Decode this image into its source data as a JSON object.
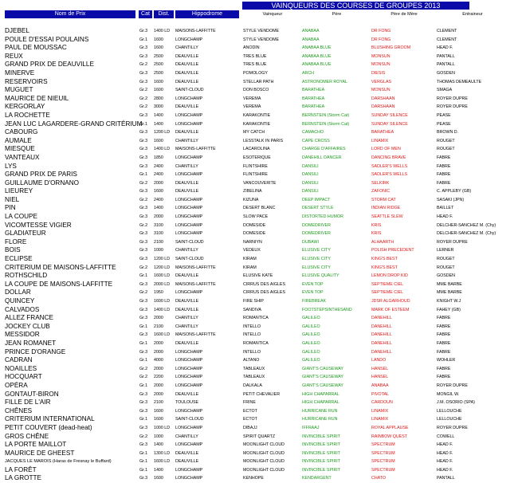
{
  "title": "VAINQUEURS DES COURSES DE GROUPES 2013",
  "headers": {
    "nom": "Nom de Prix",
    "cat": "Cat",
    "dist": "Dist.",
    "hippodrome": "Hippodrome",
    "vainqueur": "Vainqueur",
    "pere": "Père",
    "pere_de_mere": "Père de Mère",
    "entraineur": "Entraineur"
  },
  "colors": {
    "header_bg": "#0a0aa8",
    "sire": "#1a9a1a",
    "damsire": "#e01515"
  },
  "rows": [
    [
      "DJEBEL",
      "Gr.3",
      "1400 LD",
      "MAISONS-LAFFITTE",
      "STYLE VENDOME",
      "ANABAA",
      "DR FONG",
      "CLEMENT"
    ],
    [
      "POULE D'ESSAI POULAINS",
      "Gr.1",
      "1600",
      "LONGCHAMP",
      "STYLE VENDOME",
      "ANABAA",
      "DR FONG",
      "CLEMENT"
    ],
    [
      "PAUL DE MOUSSAC",
      "Gr.3",
      "1600",
      "CHANTILLY",
      "ANODIN",
      "ANABAA BLUE",
      "BLUSHING GROOM",
      "HEAD F."
    ],
    [
      "REUX",
      "Gr.3",
      "2500",
      "DEAUVILLE",
      "TRES BLUE",
      "ANABAA BLUE",
      "MONSUN",
      "PANTALL"
    ],
    [
      "GRAND PRIX DE DEAUVILLE",
      "Gr.2",
      "2500",
      "DEAUVILLE",
      "TRES BLUE",
      "ANABAA BLUE",
      "MONSUN",
      "PANTALL"
    ],
    [
      "MINERVE",
      "Gr.3",
      "2500",
      "DEAUVILLE",
      "POMOLOGY",
      "ARCH",
      "DIESIS",
      "GOSDEN"
    ],
    [
      "RESERVOIRS",
      "Gr.3",
      "1600",
      "DEAUVILLE",
      "STELLAR PATH",
      "ASTRONOMER ROYAL",
      "VERGLAS",
      "THOMAS DEMEAULTE"
    ],
    [
      "MUGUET",
      "Gr.2",
      "1600",
      "SAINT-CLOUD",
      "DON BOSCO",
      "BARATHEA",
      "MONSUN",
      "SMAGA"
    ],
    [
      "MAURICE DE NIEUIL",
      "Gr.2",
      "2800",
      "LONGCHAMP",
      "VEREMA",
      "BARATHEA",
      "DARSHAAN",
      "ROYER DUPRE"
    ],
    [
      "KERGORLAY",
      "Gr.2",
      "3000",
      "DEAUVILLE",
      "VEREMA",
      "BARATHEA",
      "DARSHAAN",
      "ROYER DUPRE"
    ],
    [
      "LA ROCHETTE",
      "Gr.3",
      "1400",
      "LONGCHAMP",
      "KARAKONTIE",
      "BERNSTEIN (Storm Cat)",
      "SUNDAY SILENCE",
      "PEASE"
    ],
    [
      "JEAN LUC LAGARDERE-GRAND CRITÉRIUM",
      "Gr.1",
      "1400",
      "LONGCHAMP",
      "KARAKONTIE",
      "BERNSTEIN (Storm Cat)",
      "SUNDAY SILENCE",
      "PEASE"
    ],
    [
      "CABOURG",
      "Gr.3",
      "1200 LD",
      "DEAUVILLE",
      "MY CATCH",
      "CAMACHO",
      "BARATHEA",
      "BROWN D."
    ],
    [
      "AUMALE",
      "Gr.3",
      "1600",
      "CHANTILLY",
      "LESSTALK IN PARIS",
      "CAPE CROSS",
      "LINAMIX",
      "ROUGET"
    ],
    [
      "MIESQUE",
      "Gr.3",
      "1400 LD",
      "MAISONS-LAFFITTE",
      "LACAROLINA",
      "CHARGE D'AFFAIRES",
      "LORD OF MEN",
      "ROUGET"
    ],
    [
      "VANTEAUX",
      "Gr.3",
      "1850",
      "LONGCHAMP",
      "ESOTERIQUE",
      "DANEHILL DANCER",
      "DANCING BRAVE",
      "FABRE"
    ],
    [
      "LYS",
      "Gr.3",
      "2400",
      "CHANTILLY",
      "FLINTSHIRE",
      "DANSILI",
      "SADLER'S WELLS",
      "FABRE"
    ],
    [
      "GRAND PRIX DE PARIS",
      "Gr.1",
      "2400",
      "LONGCHAMP",
      "FLINTSHIRE",
      "DANSILI",
      "SADLER'S WELLS",
      "FABRE"
    ],
    [
      "GUILLAUME D'ORNANO",
      "Gr.2",
      "2000",
      "DEAUVILLE",
      "VANCOUVERITE",
      "DANSILI",
      "SELKIRK",
      "FABRE"
    ],
    [
      "LIEUREY",
      "Gr.3",
      "1600",
      "DEAUVILLE",
      "ZIBELINA",
      "DANSILI",
      "ZAFONIC",
      "C. APPLEBY (GB)"
    ],
    [
      "NIEL",
      "Gr.2",
      "2400",
      "LONGCHAMP",
      "KIZUNA",
      "DEEP IMPACT",
      "STORM CAT",
      "SASAKI (JPN)"
    ],
    [
      "PIN",
      "Gr.3",
      "1400",
      "LONGCHAMP",
      "DESERT BLANC",
      "DESERT STYLE",
      "INDIAN RIDGE",
      "BAILLET"
    ],
    [
      "LA COUPE",
      "Gr.3",
      "2000",
      "LONGCHAMP",
      "SLOW PACE",
      "DISTORTED HUMOR",
      "SEATTLE SLEW",
      "HEAD F."
    ],
    [
      "VICOMTESSE VIGIER",
      "Gr.2",
      "3100",
      "LONGCHAMP",
      "DOMESIDE",
      "DOMEDRIVER",
      "KRIS",
      "DELCHER-SANCHEZ M. (Chy)"
    ],
    [
      "GLADIATEUR",
      "Gr.3",
      "3100",
      "LONGCHAMP",
      "DOMESIDE",
      "DOMEDRIVER",
      "KRIS",
      "DELCHER-SANCHEZ M. (Chy)"
    ],
    [
      "FLORE",
      "Gr.3",
      "2100",
      "SAINT-CLOUD",
      "NARNIYN",
      "DUBAWI",
      "ALHAARTH",
      "ROYER DUPRE"
    ],
    [
      "BOIS",
      "Gr.3",
      "1000",
      "CHANTILLY",
      "VEDEUX",
      "ELUSIVE CITY",
      "POLISH PRECEDENT",
      "LERNER"
    ],
    [
      "ECLIPSE",
      "Gr.3",
      "1200 LD",
      "SAINT-CLOUD",
      "KIRAM",
      "ELUSIVE CITY",
      "KING'S BEST",
      "ROUGET"
    ],
    [
      "CRITERIUM DE MAISONS-LAFFITTE",
      "Gr.2",
      "1200 LD",
      "MAISONS-LAFFITTE",
      "KIRAM",
      "ELUSIVE CITY",
      "KING'S BEST",
      "ROUGET"
    ],
    [
      "ROTHSCHILD",
      "Gr.1",
      "1600 LD",
      "DEAUVILLE",
      "ELUSIVE KATE",
      "ELUSIVE QUALITY",
      "LEMON DROP KID",
      "GOSDEN"
    ],
    [
      "LA COUPE DE MAISONS-LAFFITTE",
      "Gr.3",
      "2000 LD",
      "MAISONS-LAFFITTE",
      "CIRRUS DES AIGLES",
      "EVEN TOP",
      "SEPTIEME CIEL",
      "MME BARBE"
    ],
    [
      "DOLLAR",
      "Gr.2",
      "1950",
      "LONGCHAMP",
      "CIRRUS DES AIGLES",
      "EVEN TOP",
      "SEPTIEME CIEL",
      "MME BARBE"
    ],
    [
      "QUINCEY",
      "Gr.3",
      "1600 LD",
      "DEAUVILLE",
      "FIRE SHIP",
      "FIREBREAK",
      "JDSR ALGARHOUD",
      "KNIGHT W.J"
    ],
    [
      "CALVADOS",
      "Gr.3",
      "1400 LD",
      "DEAUVILLE",
      "SANDIVA",
      "FOOTSTEPSINTHESAND",
      "MARK OF ESTEEM",
      "FAHEY (GB)"
    ],
    [
      "ALLEZ FRANCE",
      "Gr.3",
      "2000",
      "CHANTILLY",
      "ROMANTICA",
      "GALILEO",
      "DANEHILL",
      "FABRE"
    ],
    [
      "JOCKEY CLUB",
      "Gr.1",
      "2100",
      "CHANTILLY",
      "INTELLO",
      "GALILEO",
      "DANEHILL",
      "FABRE"
    ],
    [
      "MESSIDOR",
      "Gr.3",
      "1600 LD",
      "MAISONS-LAFFITTE",
      "INTELLO",
      "GALILEO",
      "DANEHILL",
      "FABRE"
    ],
    [
      "JEAN ROMANET",
      "Gr.1",
      "2000",
      "DEAUVILLE",
      "ROMANTICA",
      "GALILEO",
      "DANEHILL",
      "FABRE"
    ],
    [
      "PRINCE D'ORANGE",
      "Gr.3",
      "2000",
      "LONGCHAMP",
      "INTELLO",
      "GALILEO",
      "DANEHILL",
      "FABRE"
    ],
    [
      "CADRAN",
      "Gr.1",
      "4000",
      "LONGCHAMP",
      "ALTANO",
      "GALILEO",
      "LANDO",
      "WOHLER"
    ],
    [
      "NOAILLES",
      "Gr.2",
      "2000",
      "LONGCHAMP",
      "TABLEAUX",
      "GIANT'S CAUSEWAY",
      "HANSEL",
      "FABRE"
    ],
    [
      "HOCQUART",
      "Gr.2",
      "2200",
      "LONGCHAMP",
      "TABLEAUX",
      "GIANT'S CAUSEWAY",
      "HANSEL",
      "FABRE"
    ],
    [
      "OPÉRA",
      "Gr.1",
      "2000",
      "LONGCHAMP",
      "DALKALA",
      "GIANT'S CAUSEWAY",
      "ANABAA",
      "ROYER DUPRE"
    ],
    [
      "GONTAUT-BIRON",
      "Gr.3",
      "2000",
      "DEAUVILLE",
      "PETIT CHEVALIER",
      "HIGH CHAPARRAL",
      "PIVOTAL",
      "MONGIL W."
    ],
    [
      "FILLE DE L'AIR",
      "Gr.3",
      "2100",
      "TOULOUSE",
      "FRINE",
      "HIGH CHAPARRAL",
      "CARDOUN",
      "J.M. OSORIO (SPA)"
    ],
    [
      "CHÊNES",
      "Gr.3",
      "1600",
      "LONGCHAMP",
      "ECTOT",
      "HURRICANE RUN",
      "LINAMIX",
      "LELLOUCHE"
    ],
    [
      "CRITERIUM INTERNATIONAL",
      "Gr.1",
      "1600",
      "SAINT-CLOUD",
      "ECTOT",
      "HURRICANE RUN",
      "LINAMIX",
      "LELLOUCHE"
    ],
    [
      "PETIT COUVERT (dead-heat)",
      "Gr.3",
      "1000 LD",
      "LONGCHAMP",
      "DIBAJJ",
      "IFFRAAJ",
      "ROYAL APPLAUSE",
      "ROYER DUPRE"
    ],
    [
      "GROS CHÊNE",
      "Gr.2",
      "1000",
      "CHANTILLY",
      "SPIRIT QUARTZ",
      "INVINCIBLE SPIRIT",
      "RAINBOW QUEST",
      "COWELL"
    ],
    [
      "LA PORTE MAILLOT",
      "Gr.3",
      "1400",
      "LONGCHAMP",
      "MOONLIGHT CLOUD",
      "INVINCIBLE SPIRIT",
      "SPECTRUM",
      "HEAD F."
    ],
    [
      "MAURICE DE GHEEST",
      "Gr.1",
      "1300 LD",
      "DEAUVILLE",
      "MOONLIGHT CLOUD",
      "INVINCIBLE SPIRIT",
      "SPECTRUM",
      "HEAD F."
    ],
    [
      "JACQUES LE MAROIS (Haras de Fresnay le Buffard)",
      "Gr.1",
      "1600 LD",
      "DEAUVILLE",
      "MOONLIGHT CLOUD",
      "INVINCIBLE SPIRIT",
      "SPECTRUM",
      "HEAD F."
    ],
    [
      "LA FORÊT",
      "Gr.1",
      "1400",
      "LONGCHAMP",
      "MOONLIGHT CLOUD",
      "INVINCIBLE SPIRIT",
      "SPECTRUM",
      "HEAD F."
    ],
    [
      "LA GROTTE",
      "Gr.3",
      "1600",
      "LONGCHAMP",
      "KENHOPE",
      "KENDARGENT",
      "CHATO",
      "PANTALL"
    ]
  ]
}
